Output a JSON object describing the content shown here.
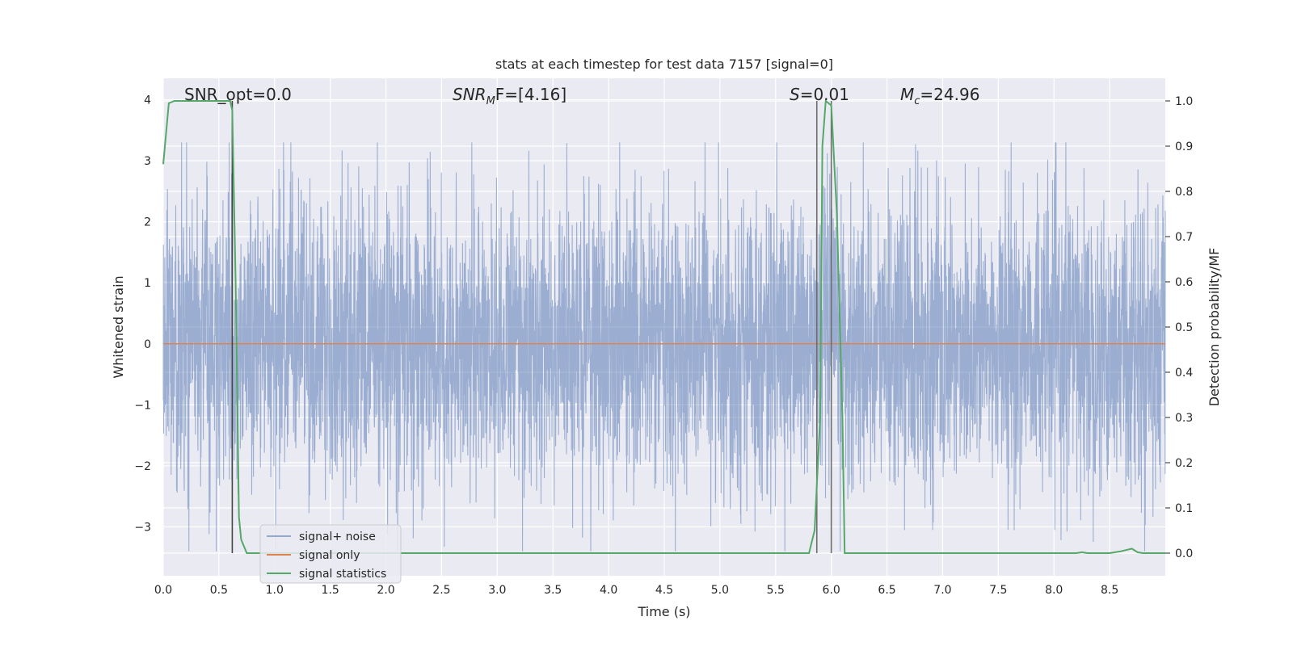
{
  "chart_data": {
    "type": "line",
    "title": "stats at each timestep for test data 7157 [signal=0]",
    "xlabel": "Time (s)",
    "ylabel_left": "Whitened strain",
    "ylabel_right": "Detection probability/MF",
    "xlim": [
      0.0,
      9.0
    ],
    "ylim_left": [
      -3.8,
      4.35
    ],
    "ylim_right": [
      -0.05,
      1.05
    ],
    "xticks": [
      "0.0",
      "0.5",
      "1.0",
      "1.5",
      "2.0",
      "2.5",
      "3.0",
      "3.5",
      "4.0",
      "4.5",
      "5.0",
      "5.5",
      "6.0",
      "6.5",
      "7.0",
      "7.5",
      "8.0",
      "8.5"
    ],
    "xtick_values": [
      0.0,
      0.5,
      1.0,
      1.5,
      2.0,
      2.5,
      3.0,
      3.5,
      4.0,
      4.5,
      5.0,
      5.5,
      6.0,
      6.5,
      7.0,
      7.5,
      8.0,
      8.5
    ],
    "yticks_left": [
      "4",
      "3",
      "2",
      "1",
      "0",
      "−1",
      "−2",
      "−3"
    ],
    "ytick_values_left": [
      4,
      3,
      2,
      1,
      0,
      -1,
      -2,
      -3
    ],
    "yticks_right": [
      "1.0",
      "0.9",
      "0.8",
      "0.7",
      "0.6",
      "0.5",
      "0.4",
      "0.3",
      "0.2",
      "0.1",
      "0.0"
    ],
    "ytick_values_right": [
      1.0,
      0.9,
      0.8,
      0.7,
      0.6,
      0.5,
      0.4,
      0.3,
      0.2,
      0.1,
      0.0
    ],
    "grid": true,
    "legend_placement": "lower-left",
    "annotations": [
      {
        "id": "snr-opt",
        "text": "SNR_opt=0.0"
      },
      {
        "id": "snr-mf",
        "text_main": "SNR",
        "text_sub": "M",
        "text_rest": "F=[4.16]"
      },
      {
        "id": "s-stat",
        "text_italic": "S",
        "text_rest": "=0.01"
      },
      {
        "id": "mc",
        "text_italic": "M",
        "text_sub": "c",
        "text_rest": "=24.96"
      }
    ],
    "vertical_markers": [
      {
        "x": 0.62,
        "color": "#444444"
      },
      {
        "x": 5.87,
        "color": "#6e6e6e"
      },
      {
        "x": 6.0,
        "color": "#6e6e6e"
      }
    ],
    "series": [
      {
        "name": "signal+ noise",
        "color": "#4c72b0",
        "axis": "left",
        "note_values": "dense noise trace, roughly within -3.4..3.3",
        "noise_amplitude": 1.15
      },
      {
        "name": "signal only",
        "color": "#dd8452",
        "axis": "left",
        "x": [
          0.0,
          9.0
        ],
        "y": [
          0.0,
          0.0
        ]
      },
      {
        "name": "signal statistics",
        "color": "#55a868",
        "axis": "right",
        "x": [
          0.0,
          0.05,
          0.1,
          0.15,
          0.2,
          0.3,
          0.4,
          0.5,
          0.6,
          0.62,
          0.65,
          0.68,
          0.7,
          0.75,
          0.8,
          1.0,
          2.0,
          3.0,
          4.0,
          5.0,
          5.5,
          5.8,
          5.85,
          5.9,
          5.92,
          5.95,
          6.0,
          6.05,
          6.1,
          6.12,
          6.15,
          6.5,
          7.0,
          7.5,
          8.0,
          8.2,
          8.25,
          8.3,
          8.5,
          8.6,
          8.65,
          8.7,
          8.75,
          8.8,
          9.0
        ],
        "y": [
          0.86,
          0.995,
          1.0,
          1.0,
          1.0,
          1.0,
          1.0,
          1.0,
          1.0,
          0.98,
          0.6,
          0.08,
          0.03,
          0.0,
          0.0,
          0.0,
          0.0,
          0.0,
          0.0,
          0.0,
          0.0,
          0.0,
          0.05,
          0.3,
          0.9,
          1.0,
          0.99,
          0.75,
          0.3,
          0.0,
          0.0,
          0.0,
          0.0,
          0.0,
          0.0,
          0.0,
          0.002,
          0.0,
          0.0,
          0.004,
          0.007,
          0.01,
          0.002,
          0.0,
          0.0
        ]
      }
    ],
    "legend": [
      "signal+ noise",
      "signal only",
      "signal statistics"
    ]
  }
}
